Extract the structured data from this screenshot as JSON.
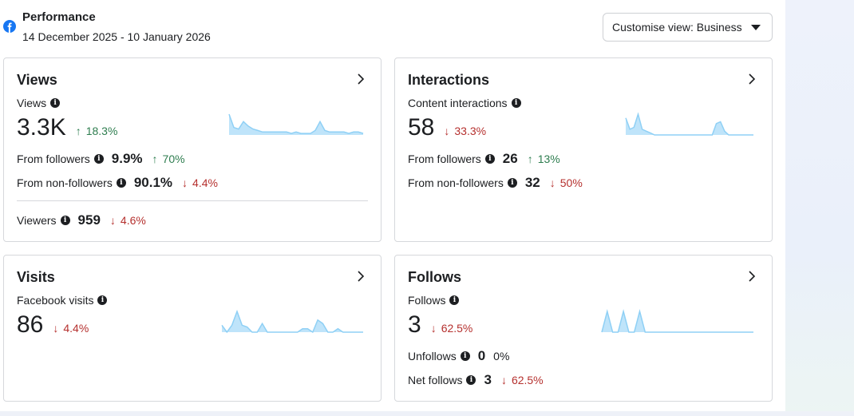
{
  "header": {
    "title": "Performance",
    "date_range": "14 December 2025 - 10 January 2026",
    "customise_view_label": "Customise view: Business"
  },
  "colors": {
    "facebook_blue": "#1877f2",
    "sparkline_fill": "#bfe4fa",
    "sparkline_line": "#8fd0f5",
    "up": "#2e7d4f",
    "down": "#b5302e"
  },
  "cards": {
    "views": {
      "title": "Views",
      "metric_label": "Views",
      "value": "3.3K",
      "change": "18.3%",
      "change_dir": "up",
      "rows": [
        {
          "label": "From followers",
          "value": "9.9%",
          "change": "70%",
          "dir": "up"
        },
        {
          "label": "From non-followers",
          "value": "90.1%",
          "change": "4.4%",
          "dir": "down"
        }
      ],
      "viewers": {
        "label": "Viewers",
        "value": "959",
        "change": "4.6%",
        "dir": "down"
      },
      "sparkline": [
        14,
        5,
        4,
        9,
        6,
        4,
        3,
        2,
        2,
        2,
        2,
        2,
        2,
        1,
        2,
        1,
        1,
        1,
        3,
        9,
        3,
        2,
        2,
        2,
        2,
        1,
        2,
        2,
        1
      ]
    },
    "interactions": {
      "title": "Interactions",
      "metric_label": "Content interactions",
      "value": "58",
      "change": "33.3%",
      "change_dir": "down",
      "rows": [
        {
          "label": "From followers",
          "value": "26",
          "change": "13%",
          "dir": "up"
        },
        {
          "label": "From non-followers",
          "value": "32",
          "change": "50%",
          "dir": "down"
        }
      ],
      "sparkline": [
        9,
        3,
        4,
        11,
        3,
        2,
        1,
        0,
        0,
        0,
        0,
        0,
        0,
        0,
        0,
        0,
        0,
        0,
        0,
        0,
        0,
        0,
        6,
        7,
        2,
        0,
        0,
        0,
        0,
        0,
        0,
        0
      ]
    },
    "visits": {
      "title": "Visits",
      "metric_label": "Facebook visits",
      "value": "86",
      "change": "4.4%",
      "change_dir": "down",
      "sparkline": [
        4,
        0,
        4,
        12,
        4,
        3,
        0,
        0,
        5,
        0,
        0,
        0,
        0,
        0,
        0,
        0,
        2,
        2,
        0,
        7,
        5,
        0,
        0,
        2,
        0,
        0,
        0,
        0,
        0
      ]
    },
    "follows": {
      "title": "Follows",
      "metric_label": "Follows",
      "value": "3",
      "change": "62.5%",
      "change_dir": "down",
      "rows": [
        {
          "label": "Unfollows",
          "value": "0",
          "change": "0%",
          "dir": "none"
        },
        {
          "label": "Net follows",
          "value": "3",
          "change": "62.5%",
          "dir": "down"
        }
      ],
      "sparkline": [
        0,
        1,
        0,
        0,
        1,
        0,
        0,
        1,
        0,
        0,
        0,
        0,
        0,
        0,
        0,
        0,
        0,
        0,
        0,
        0,
        0,
        0,
        0,
        0,
        0,
        0,
        0,
        0,
        0
      ]
    }
  }
}
